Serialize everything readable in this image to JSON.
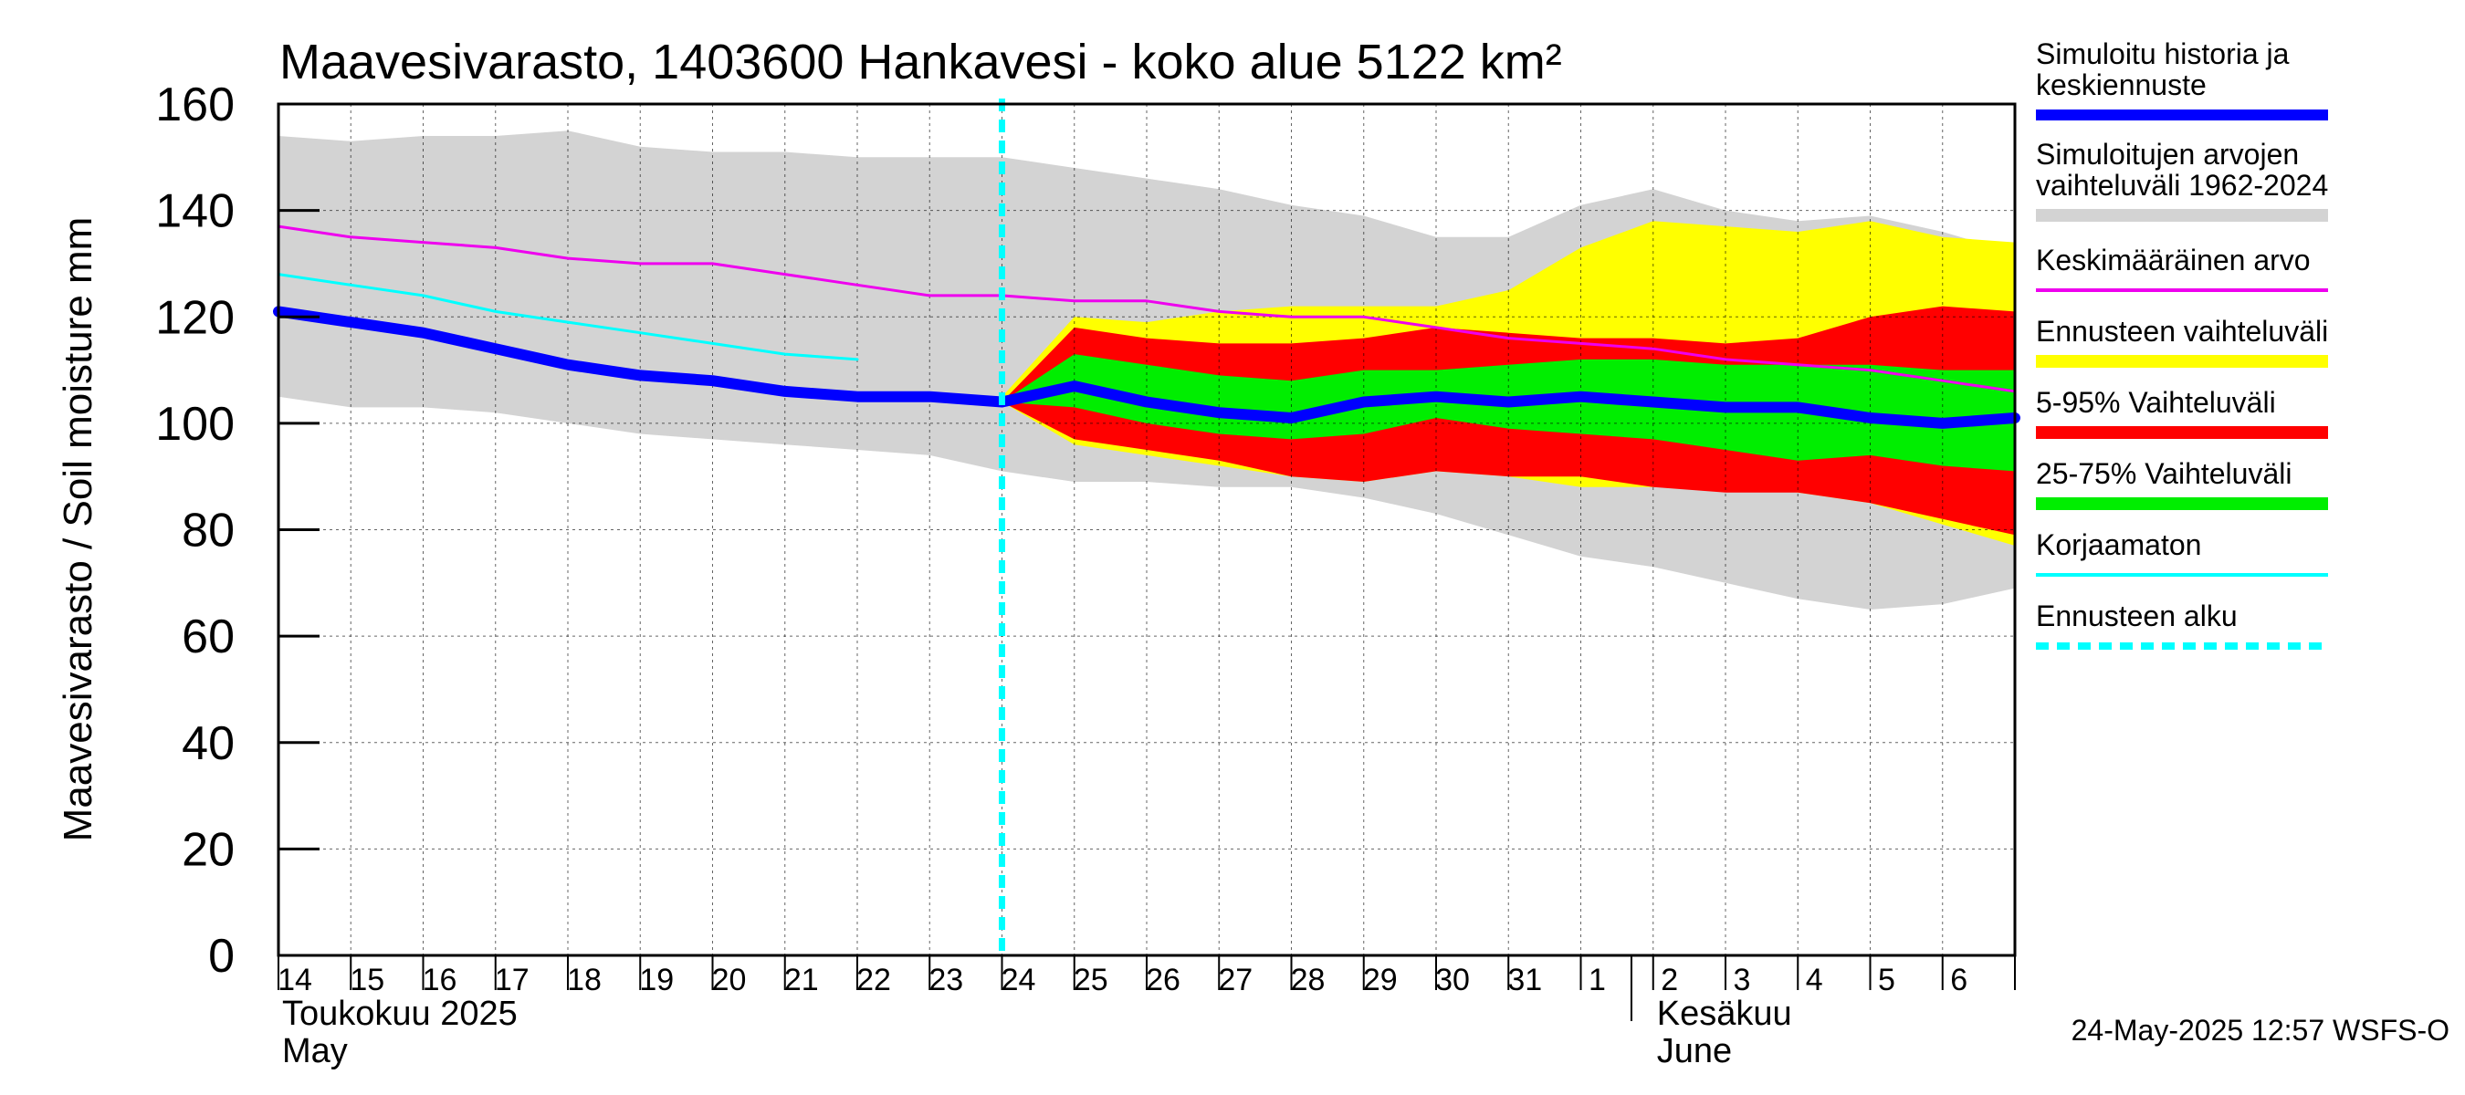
{
  "chart_data": {
    "type": "area",
    "title": "Maavesivarasto, 1403600 Hankavesi - koko alue 5122 km²",
    "ylabel": "Maavesivarasto / Soil moisture   mm",
    "ylim": [
      0,
      160
    ],
    "yticks": [
      0,
      20,
      40,
      60,
      80,
      100,
      120,
      140,
      160
    ],
    "x_day_labels": [
      "14",
      "15",
      "16",
      "17",
      "18",
      "19",
      "20",
      "21",
      "22",
      "23",
      "24",
      "25",
      "26",
      "27",
      "28",
      "29",
      "30",
      "31",
      "1",
      "2",
      "3",
      "4",
      "5",
      "6"
    ],
    "x_domain": [
      0,
      24
    ],
    "forecast_start": 10,
    "month_labels": [
      {
        "line1": "Toukokuu  2025",
        "line2": "May",
        "x": 0
      },
      {
        "line1": "Kesäkuu",
        "line2": "June",
        "x": 19
      }
    ],
    "month_separator_x": 18.7,
    "series": {
      "range_1962_2024": {
        "name": "Simuloitujen arvojen vaihteluväli 1962-2024",
        "color": "#d3d3d3",
        "x": [
          0,
          1,
          2,
          3,
          4,
          5,
          6,
          7,
          8,
          9,
          10,
          11,
          12,
          13,
          14,
          15,
          16,
          17,
          18,
          19,
          20,
          21,
          22,
          23,
          24
        ],
        "upper": [
          154,
          153,
          154,
          154,
          155,
          152,
          151,
          151,
          150,
          150,
          150,
          148,
          146,
          144,
          141,
          139,
          135,
          135,
          141,
          144,
          140,
          138,
          139,
          136,
          132
        ],
        "lower": [
          105,
          103,
          103,
          102,
          100,
          98,
          97,
          96,
          95,
          94,
          91,
          89,
          89,
          88,
          88,
          86,
          83,
          79,
          75,
          73,
          70,
          67,
          65,
          66,
          69
        ]
      },
      "ensemble_range": {
        "name": "Ennusteen vaihteluväli",
        "color": "#ffff00",
        "x": [
          9.9,
          10,
          11,
          12,
          13,
          14,
          15,
          16,
          17,
          18,
          19,
          20,
          21,
          22,
          23,
          24
        ],
        "upper": [
          105,
          105,
          120,
          119,
          121,
          122,
          122,
          122,
          125,
          133,
          138,
          137,
          136,
          138,
          135,
          134
        ],
        "lower": [
          105,
          104,
          96,
          94,
          92,
          90,
          89,
          91,
          90,
          88,
          88,
          88,
          87,
          85,
          81,
          77
        ]
      },
      "p5_95": {
        "name": "5-95% Vaihteluväli",
        "color": "#ff0000",
        "x": [
          10,
          11,
          12,
          13,
          14,
          15,
          16,
          17,
          18,
          19,
          20,
          21,
          22,
          23,
          24
        ],
        "upper": [
          104,
          118,
          116,
          115,
          115,
          116,
          118,
          117,
          116,
          116,
          115,
          116,
          120,
          122,
          121
        ],
        "lower": [
          104,
          97,
          95,
          93,
          90,
          89,
          91,
          90,
          90,
          88,
          87,
          87,
          85,
          82,
          79
        ]
      },
      "p25_75": {
        "name": "25-75% Vaihteluväli",
        "color": "#00ee00",
        "x": [
          10,
          11,
          12,
          13,
          14,
          15,
          16,
          17,
          18,
          19,
          20,
          21,
          22,
          23,
          24
        ],
        "upper": [
          104,
          113,
          111,
          109,
          108,
          110,
          110,
          111,
          112,
          112,
          111,
          111,
          111,
          110,
          110
        ],
        "lower": [
          104,
          103,
          100,
          98,
          97,
          98,
          101,
          99,
          98,
          97,
          95,
          93,
          94,
          92,
          91
        ]
      },
      "mean": {
        "name": "Keskimääräinen arvo",
        "color": "#ee00ee",
        "x": [
          0,
          1,
          2,
          3,
          4,
          5,
          6,
          7,
          8,
          9,
          10,
          11,
          12,
          13,
          14,
          15,
          16,
          17,
          18,
          19,
          20,
          21,
          22,
          23,
          24
        ],
        "values": [
          137,
          135,
          134,
          133,
          131,
          130,
          130,
          128,
          126,
          124,
          124,
          123,
          123,
          121,
          120,
          120,
          118,
          116,
          115,
          114,
          112,
          111,
          110,
          108,
          106
        ]
      },
      "uncorrected": {
        "name": "Korjaamaton",
        "color": "#00ffff",
        "x": [
          0,
          1,
          2,
          3,
          4,
          5,
          6,
          7,
          8
        ],
        "values": [
          128,
          126,
          124,
          121,
          119,
          117,
          115,
          113,
          112
        ]
      },
      "history_forecast": {
        "name": "Simuloitu historia ja keskiennuste",
        "color": "#0000ff",
        "x": [
          0,
          1,
          2,
          3,
          4,
          5,
          6,
          7,
          8,
          9,
          10,
          11,
          12,
          13,
          14,
          15,
          16,
          17,
          18,
          19,
          20,
          21,
          22,
          23,
          24
        ],
        "values": [
          121,
          119,
          117,
          114,
          111,
          109,
          108,
          106,
          105,
          105,
          104,
          107,
          104,
          102,
          101,
          104,
          105,
          104,
          105,
          104,
          103,
          103,
          101,
          100,
          101
        ]
      }
    },
    "legend": [
      {
        "key": "history_forecast",
        "label1": "Simuloitu historia ja",
        "label2": "keskiennuste",
        "color": "#0000ff",
        "style": "thick"
      },
      {
        "key": "range_1962_2024",
        "label1": "Simuloitujen arvojen",
        "label2": "vaihteluväli 1962-2024",
        "color": "#d3d3d3",
        "style": "band"
      },
      {
        "key": "mean",
        "label1": "Keskimääräinen arvo",
        "label2": "",
        "color": "#ee00ee",
        "style": "thin"
      },
      {
        "key": "ensemble_range",
        "label1": "Ennusteen vaihteluväli",
        "label2": "",
        "color": "#ffff00",
        "style": "band"
      },
      {
        "key": "p5_95",
        "label1": "5-95% Vaihteluväli",
        "label2": "",
        "color": "#ff0000",
        "style": "band"
      },
      {
        "key": "p25_75",
        "label1": "25-75% Vaihteluväli",
        "label2": "",
        "color": "#00ee00",
        "style": "band"
      },
      {
        "key": "uncorrected",
        "label1": "Korjaamaton",
        "label2": "",
        "color": "#00ffff",
        "style": "thin"
      },
      {
        "key": "forecast_start",
        "label1": "Ennusteen alku",
        "label2": "",
        "color": "#00ffff",
        "style": "dashed"
      }
    ],
    "timestamp": "24-May-2025 12:57 WSFS-O"
  }
}
